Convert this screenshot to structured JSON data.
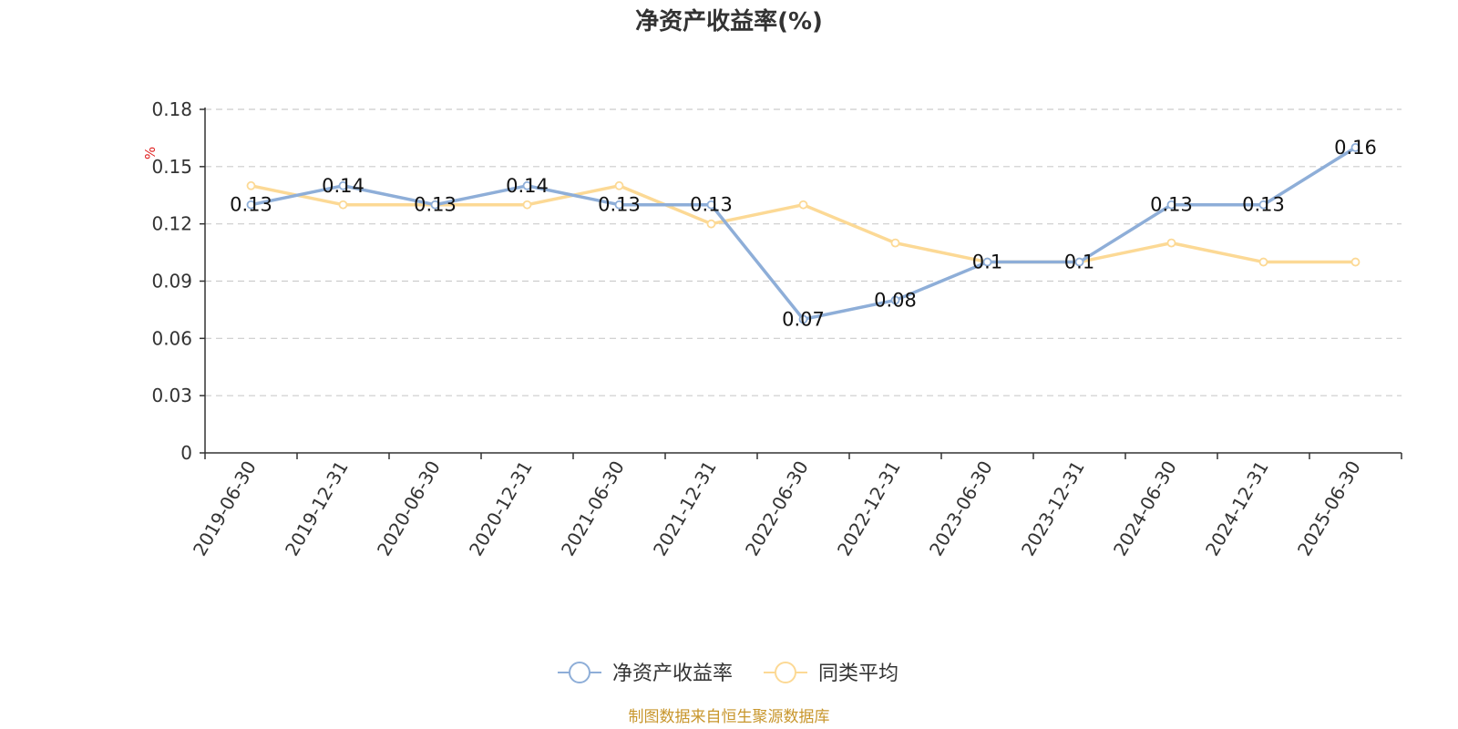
{
  "chart_data": {
    "type": "line",
    "title": "净资产收益率(%)",
    "unit_label": "%",
    "x": [
      "2019-06-30",
      "2019-12-31",
      "2020-06-30",
      "2020-12-31",
      "2021-06-30",
      "2021-12-31",
      "2022-06-30",
      "2022-12-31",
      "2023-06-30",
      "2023-12-31",
      "2024-06-30",
      "2024-12-31",
      "2025-06-30"
    ],
    "yticks": [
      "0",
      "0.03",
      "0.06",
      "0.09",
      "0.12",
      "0.15",
      "0.18"
    ],
    "ylim": [
      0,
      0.18
    ],
    "grid": true,
    "legend_position": "bottom",
    "series": [
      {
        "name": "净资产收益率",
        "color": "#8eaed8",
        "values": [
          0.13,
          0.14,
          0.13,
          0.14,
          0.13,
          0.13,
          0.07,
          0.08,
          0.1,
          0.1,
          0.13,
          0.13,
          0.16
        ],
        "labels": [
          "0.13",
          "0.14",
          "0.13",
          "0.14",
          "0.13",
          "0.13",
          "0.07",
          "0.08",
          "0.1",
          "0.1",
          "0.13",
          "0.13",
          "0.16"
        ]
      },
      {
        "name": "同类平均",
        "color": "#fcd995",
        "values": [
          0.14,
          0.13,
          0.13,
          0.13,
          0.14,
          0.12,
          0.13,
          0.11,
          0.1,
          0.1,
          0.11,
          0.1,
          0.1
        ]
      }
    ],
    "source": "制图数据来自恒生聚源数据库"
  }
}
